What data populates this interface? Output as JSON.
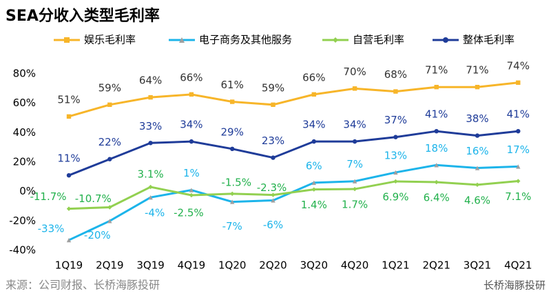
{
  "chart_data": {
    "type": "line",
    "title": "SEA分收入类型毛利率",
    "source": "来源：公司财报、长桥海豚投研",
    "brand": "长桥海豚投研",
    "categories": [
      "1Q19",
      "2Q19",
      "3Q19",
      "4Q19",
      "1Q20",
      "2Q20",
      "3Q20",
      "4Q20",
      "1Q21",
      "2Q21",
      "3Q21",
      "4Q21"
    ],
    "series": [
      {
        "name": "娱乐毛利率",
        "color": "#f7b529",
        "marker": "square",
        "values": [
          51,
          59,
          64,
          66,
          61,
          59,
          66,
          70,
          68,
          71,
          71,
          74
        ],
        "value_labels": [
          "51%",
          "59%",
          "64%",
          "66%",
          "61%",
          "59%",
          "66%",
          "70%",
          "68%",
          "71%",
          "71%",
          "74%"
        ]
      },
      {
        "name": "电子商务及其他服务",
        "color": "#1cb4ea",
        "marker": "triangle",
        "values": [
          -33,
          -20,
          -4,
          1,
          -7,
          -6,
          6,
          7,
          13,
          18,
          16,
          17
        ],
        "value_labels": [
          "-33%",
          "-20%",
          "-4%",
          "1%",
          "-7%",
          "-6%",
          "6%",
          "7%",
          "13%",
          "18%",
          "16%",
          "17%"
        ]
      },
      {
        "name": "自营毛利率",
        "color": "#92d050",
        "marker": "diamond",
        "values": [
          -11.7,
          -10.7,
          3.1,
          -2.5,
          -1.5,
          -2.3,
          1.4,
          1.7,
          6.9,
          6.4,
          4.6,
          7.1
        ],
        "value_labels": [
          "-11.7%",
          "-10.7%",
          "3.1%",
          "-2.5%",
          "-1.5%",
          "-2.3%",
          "1.4%",
          "1.7%",
          "6.9%",
          "6.4%",
          "4.6%",
          "7.1%"
        ]
      },
      {
        "name": "整体毛利率",
        "color": "#1f3c99",
        "marker": "circle",
        "values": [
          11,
          22,
          33,
          34,
          29,
          23,
          34,
          34,
          37,
          41,
          38,
          41
        ],
        "value_labels": [
          "11%",
          "22%",
          "33%",
          "34%",
          "29%",
          "23%",
          "34%",
          "34%",
          "37%",
          "41%",
          "38%",
          "41%"
        ]
      }
    ],
    "ylim": [
      -40,
      80
    ],
    "yticks": [
      {
        "value": -40,
        "label": "-40%"
      },
      {
        "value": -20,
        "label": "-20%"
      },
      {
        "value": 0,
        "label": "0%"
      },
      {
        "value": 20,
        "label": "20%"
      },
      {
        "value": 40,
        "label": "40%"
      },
      {
        "value": 60,
        "label": "60%"
      },
      {
        "value": 80,
        "label": "80%"
      }
    ],
    "grid": false,
    "legend": "top"
  }
}
